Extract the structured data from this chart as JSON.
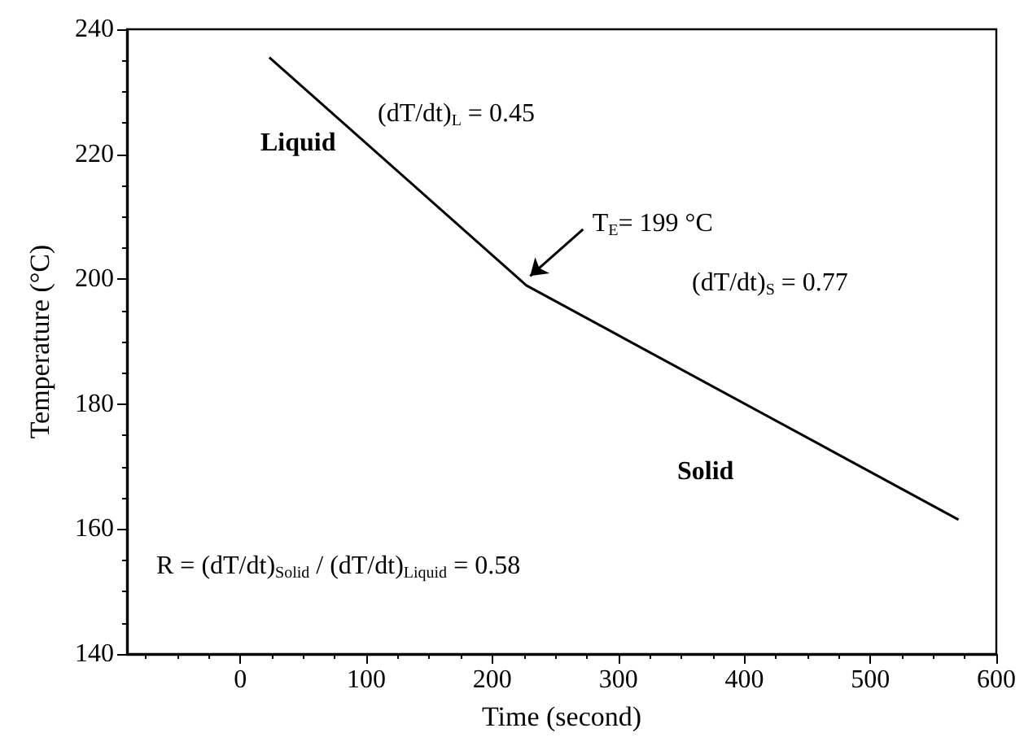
{
  "chart_data": {
    "type": "line",
    "xlabel": "Time (second)",
    "ylabel": "Temperature (°C)",
    "x": [
      23,
      227,
      570
    ],
    "series": [
      {
        "color": "#000000",
        "values": [
          235.5,
          199,
          161.5
        ]
      }
    ],
    "xlim": [
      -90,
      600
    ],
    "xticks": [
      0,
      100,
      200,
      300,
      400,
      500,
      600
    ],
    "ylim": [
      140,
      240
    ],
    "yticks": [
      140,
      160,
      180,
      200,
      220,
      240
    ],
    "marker": "none",
    "line_style": "solid",
    "annotations": [
      {
        "text": "T$_{E}$= 199 °C",
        "x": 227,
        "y": 199
      },
      "Liquid",
      "(dT/dt)$_{L}$ = 0.45",
      "(dT/dt)$_{S}$ = 0.77",
      "Solid",
      "R = (dT/dt)$_{Solid}$ / (dT/dt)$_{Liquid}$ = 0.58"
    ]
  }
}
